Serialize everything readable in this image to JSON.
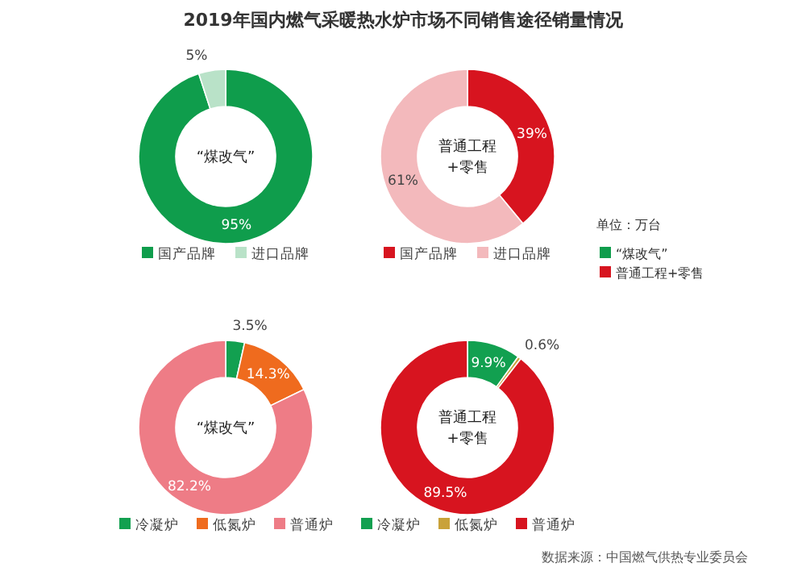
{
  "chart_data": [
    {
      "type": "donut",
      "title": "2019年国内燃气采暖热水炉市场不同销售途径销量情况",
      "categories": [
        "国产品牌",
        "进口品牌"
      ],
      "values": [
        95,
        5
      ],
      "colors": [
        "#0f9d4c",
        "#b9e2c8"
      ],
      "value_labels": [
        "95%",
        "5%"
      ],
      "legend": "bottom",
      "annotations": [
        "“煤改气”"
      ]
    },
    {
      "type": "donut",
      "categories": [
        "国产品牌",
        "进口品牌"
      ],
      "values": [
        39,
        61
      ],
      "colors": [
        "#d7141f",
        "#f3b9bc"
      ],
      "value_labels": [
        "39%",
        "61%"
      ],
      "legend": "bottom",
      "annotations": [
        "普通工程\n+零售",
        "单位：万台",
        "“煤改气”",
        "普通工程+零售"
      ]
    },
    {
      "type": "donut",
      "categories": [
        "冷凝炉",
        "低氮炉",
        "普通炉"
      ],
      "values": [
        3.5,
        14.3,
        82.2
      ],
      "colors": [
        "#12a050",
        "#ef6b1e",
        "#ee7c86"
      ],
      "value_labels": [
        "3.5%",
        "14.3%",
        "82.2%"
      ],
      "legend": "bottom",
      "annotations": [
        "“煤改气”"
      ]
    },
    {
      "type": "donut",
      "categories": [
        "冷凝炉",
        "低氮炉",
        "普通炉"
      ],
      "values": [
        9.9,
        0.6,
        89.5
      ],
      "colors": [
        "#12a050",
        "#c9a23a",
        "#d7141f"
      ],
      "value_labels": [
        "9.9%",
        "0.6%",
        "89.5%"
      ],
      "legend": "bottom",
      "annotations": [
        "普通工程\n+零售",
        "数据来源：中国燃气供热专业委员会"
      ]
    }
  ]
}
